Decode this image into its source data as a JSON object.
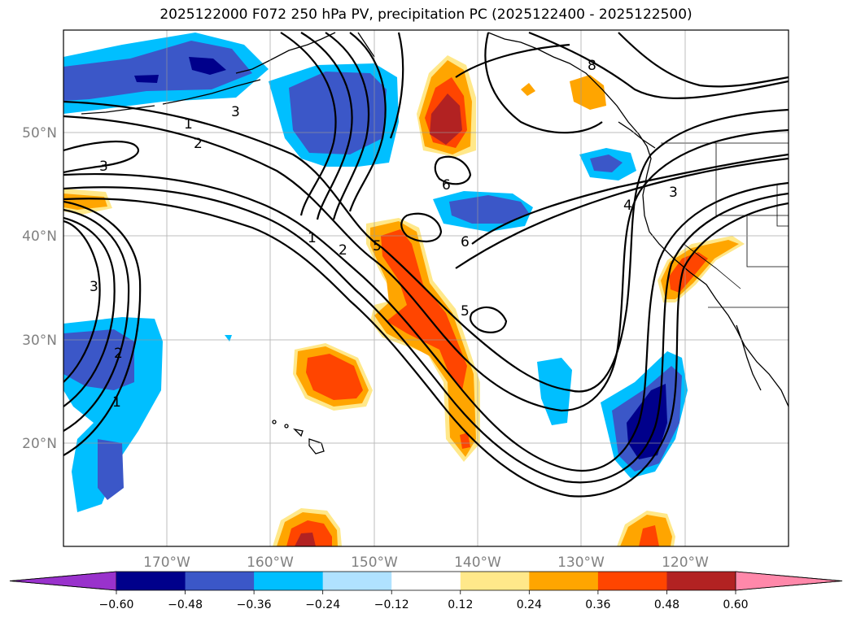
{
  "title": "2025122000 F072 250 hPa PV, precipitation PC (2025122400 - 2025122500)",
  "map": {
    "lat_labels": [
      "50°N",
      "40°N",
      "30°N",
      "20°N"
    ],
    "lon_labels": [
      "170°W",
      "160°W",
      "150°W",
      "140°W",
      "130°W",
      "120°W"
    ],
    "contour_labels": [
      "1",
      "2",
      "3",
      "3",
      "1",
      "2",
      "5",
      "5",
      "6",
      "6",
      "2",
      "1",
      "3",
      "4",
      "3",
      "8"
    ]
  },
  "colorbar": {
    "ticks": [
      "−0.60",
      "−0.48",
      "−0.36",
      "−0.24",
      "−0.12",
      "0.12",
      "0.24",
      "0.36",
      "0.48",
      "0.60"
    ],
    "colors": [
      "#9932cc",
      "#00008b",
      "#3b57c8",
      "#00bfff",
      "#b0e2ff",
      "#ffffff",
      "#ffe88a",
      "#ffa500",
      "#ff4500",
      "#b22222",
      "#ff88aa"
    ]
  }
}
